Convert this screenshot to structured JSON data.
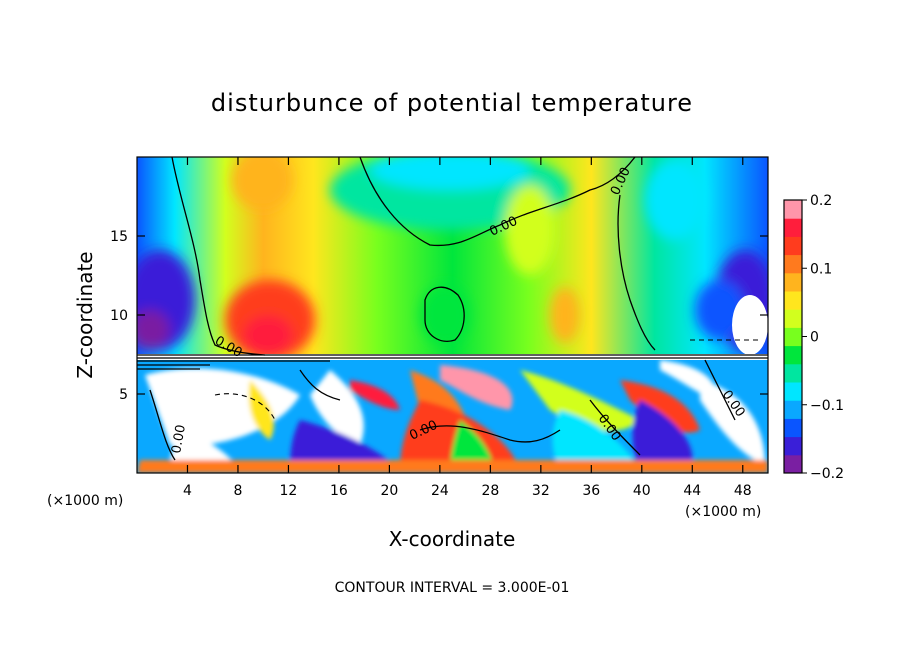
{
  "chart_data": {
    "type": "heatmap",
    "title": "disturbunce of potential temperature",
    "xlabel": "X-coordinate",
    "ylabel": "Z-coordinate",
    "x_unit": "(×1000 m)",
    "x_unit_right": "(×1000 m)",
    "xlim": [
      0,
      50
    ],
    "ylim": [
      0,
      20
    ],
    "x_ticks": [
      "4",
      "8",
      "12",
      "16",
      "20",
      "24",
      "28",
      "32",
      "36",
      "40",
      "44",
      "48"
    ],
    "y_ticks": [
      "5",
      "10",
      "15"
    ],
    "colorbar": {
      "range": [
        -0.2,
        0.2
      ],
      "tick_labels": [
        "0.2",
        "0.1",
        "0",
        "−0.1",
        "−0.2"
      ],
      "colors": [
        "#7a1fa2",
        "#3a1fd8",
        "#0a55ff",
        "#0aa8ff",
        "#00e6ff",
        "#00e6a0",
        "#00e63c",
        "#78ff1e",
        "#d2ff1e",
        "#ffe61e",
        "#ffb41e",
        "#ff7a1e",
        "#ff3c1e",
        "#ff1e3c",
        "#ff96aa"
      ]
    },
    "contour_labels": [
      "0.00",
      "0.00",
      "0.00",
      "0.00",
      "0.00",
      "0.00",
      "0.00"
    ],
    "note": "CONTOUR INTERVAL = 3.000E-01"
  }
}
